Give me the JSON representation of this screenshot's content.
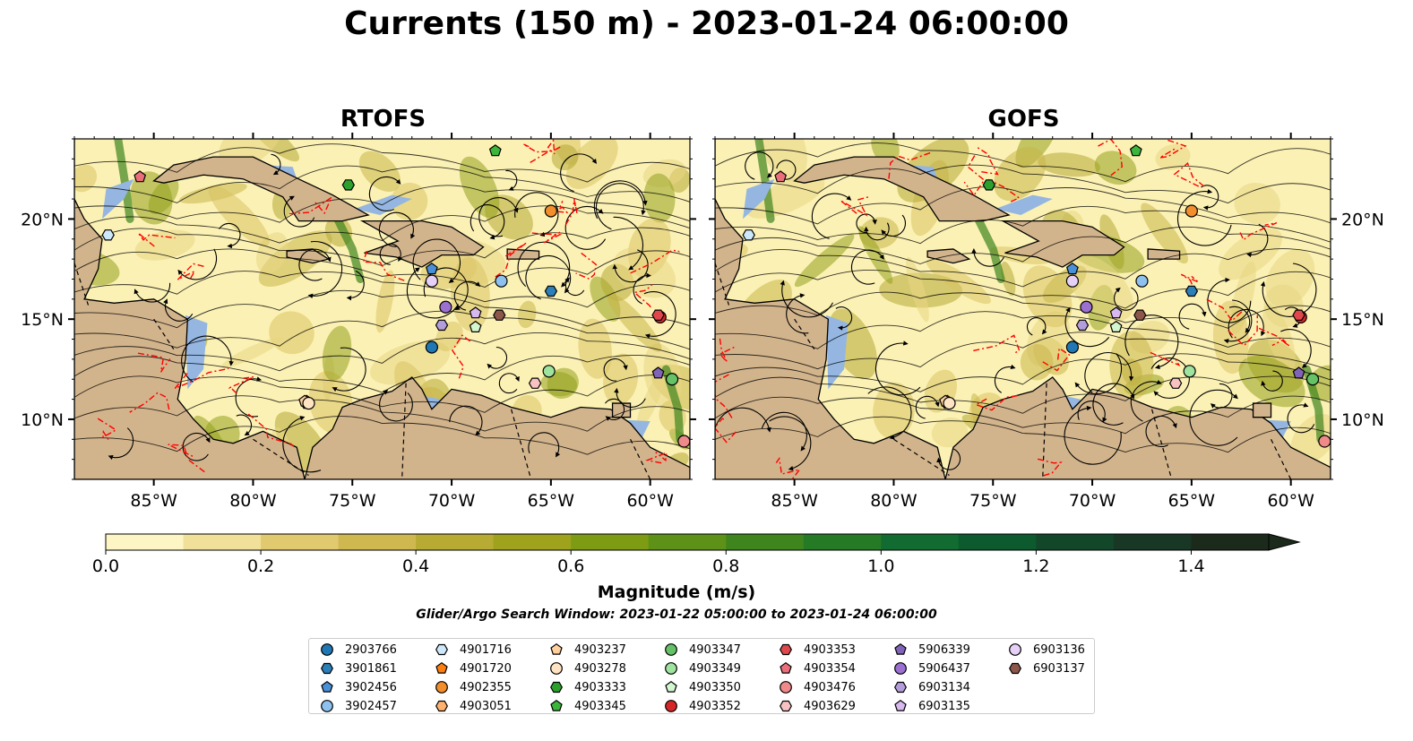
{
  "figure": {
    "title": "Currents (150 m) - 2023-01-24 06:00:00",
    "panels": [
      "RTOFS",
      "GOFS"
    ]
  },
  "map_extent": {
    "lon_min": -89,
    "lon_max": -58,
    "lat_min": 7,
    "lat_max": 24
  },
  "axes": {
    "x_ticks": [
      {
        "lon": -85,
        "label": "85°W"
      },
      {
        "lon": -80,
        "label": "80°W"
      },
      {
        "lon": -75,
        "label": "75°W"
      },
      {
        "lon": -70,
        "label": "70°W"
      },
      {
        "lon": -65,
        "label": "65°W"
      },
      {
        "lon": -60,
        "label": "60°W"
      }
    ],
    "y_ticks": [
      {
        "lat": 10,
        "label": "10°N"
      },
      {
        "lat": 15,
        "label": "15°N"
      },
      {
        "lat": 20,
        "label": "20°N"
      }
    ]
  },
  "colorbar": {
    "label": "Magnitude (m/s)",
    "min": 0.0,
    "max": 1.5,
    "extend": "max",
    "ticks": [
      "0.0",
      "0.2",
      "0.4",
      "0.6",
      "0.8",
      "1.0",
      "1.2",
      "1.4"
    ],
    "colors": [
      "#fdf6c4",
      "#f0e09a",
      "#e0c96f",
      "#cfb84f",
      "#b7ab33",
      "#9ea21d",
      "#7e9b14",
      "#5e9118",
      "#3f851e",
      "#257a26",
      "#126b30",
      "#0c5a2e",
      "#13472a",
      "#183724",
      "#1c2a1c"
    ]
  },
  "search_window": "Glider/Argo Search Window: 2023-01-22 05:00:00 to 2023-01-24 06:00:00",
  "colors": {
    "land": "#d2b48c",
    "shallow_water": "#94b6e1",
    "drifter_track": "#ff0000",
    "streamline": "#000000",
    "ocean_low": "#fbf1b4"
  },
  "platforms": [
    {
      "id": "2903766",
      "color": "#1f77b4",
      "marker": "circle",
      "lon": -71.0,
      "lat": 13.6
    },
    {
      "id": "3901861",
      "color": "#2c7fb8",
      "marker": "hexagon",
      "lon": -65.0,
      "lat": 16.4
    },
    {
      "id": "3902456",
      "color": "#4a90d9",
      "marker": "pentagon",
      "lon": -71.0,
      "lat": 17.5
    },
    {
      "id": "3902457",
      "color": "#8ec1ee",
      "marker": "circle",
      "lon": -67.5,
      "lat": 16.9
    },
    {
      "id": "4901716",
      "color": "#cde8fb",
      "marker": "hexagon",
      "lon": -87.3,
      "lat": 19.2
    },
    {
      "id": "4901720",
      "color": "#ff7f0e",
      "marker": "pentagon",
      "lon": -77.3,
      "lat": 10.9
    },
    {
      "id": "4902355",
      "color": "#f28e2b",
      "marker": "circle",
      "lon": -65.0,
      "lat": 20.4
    },
    {
      "id": "4903051",
      "color": "#ffb26e",
      "marker": "hexagon",
      "lon": -77.3,
      "lat": 10.8
    },
    {
      "id": "4903237",
      "color": "#ffcf9e",
      "marker": "pentagon",
      "lon": -77.4,
      "lat": 10.9
    },
    {
      "id": "4903278",
      "color": "#ffe4c4",
      "marker": "circle",
      "lon": -77.2,
      "lat": 10.8
    },
    {
      "id": "4903333",
      "color": "#2ca02c",
      "marker": "hexagon",
      "lon": -75.2,
      "lat": 21.7
    },
    {
      "id": "4903345",
      "color": "#3bb53b",
      "marker": "pentagon",
      "lon": -67.8,
      "lat": 23.4
    },
    {
      "id": "4903347",
      "color": "#66c266",
      "marker": "circle",
      "lon": -58.9,
      "lat": 12.0
    },
    {
      "id": "4903349",
      "color": "#9ee39e",
      "marker": "circle",
      "lon": -65.1,
      "lat": 12.4
    },
    {
      "id": "4903350",
      "color": "#d4f7cf",
      "marker": "pentagon",
      "lon": -68.8,
      "lat": 14.6
    },
    {
      "id": "4903352",
      "color": "#d62728",
      "marker": "circle",
      "lon": -59.5,
      "lat": 15.1
    },
    {
      "id": "4903353",
      "color": "#e0474c",
      "marker": "hexagon",
      "lon": -59.6,
      "lat": 15.2
    },
    {
      "id": "4903354",
      "color": "#eb6f7a",
      "marker": "pentagon",
      "lon": -85.7,
      "lat": 22.1
    },
    {
      "id": "4903476",
      "color": "#f08a8a",
      "marker": "circle",
      "lon": -58.3,
      "lat": 8.9
    },
    {
      "id": "4903629",
      "color": "#f9c2c2",
      "marker": "hexagon",
      "lon": -65.8,
      "lat": 11.8
    },
    {
      "id": "5906339",
      "color": "#8064b8",
      "marker": "pentagon",
      "lon": -59.6,
      "lat": 12.3
    },
    {
      "id": "5906437",
      "color": "#9b70cf",
      "marker": "circle",
      "lon": -70.3,
      "lat": 15.6
    },
    {
      "id": "6903134",
      "color": "#b39ddb",
      "marker": "hexagon",
      "lon": -70.5,
      "lat": 14.7
    },
    {
      "id": "6903135",
      "color": "#d7b8ef",
      "marker": "pentagon",
      "lon": -68.8,
      "lat": 15.3
    },
    {
      "id": "6903136",
      "color": "#e6d0f7",
      "marker": "circle",
      "lon": -71.0,
      "lat": 16.9
    },
    {
      "id": "6903137",
      "color": "#8c564b",
      "marker": "hexagon",
      "lon": -67.6,
      "lat": 15.2
    }
  ]
}
